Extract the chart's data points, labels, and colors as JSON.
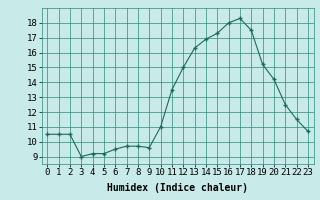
{
  "x": [
    0,
    1,
    2,
    3,
    4,
    5,
    6,
    7,
    8,
    9,
    10,
    11,
    12,
    13,
    14,
    15,
    16,
    17,
    18,
    19,
    20,
    21,
    22,
    23
  ],
  "y": [
    10.5,
    10.5,
    10.5,
    9.0,
    9.2,
    9.2,
    9.5,
    9.7,
    9.7,
    9.6,
    11.0,
    13.5,
    15.0,
    16.3,
    16.9,
    17.3,
    18.0,
    18.3,
    17.5,
    15.2,
    14.2,
    12.5,
    11.5,
    10.7
  ],
  "xlabel": "Humidex (Indice chaleur)",
  "xlim": [
    -0.5,
    23.5
  ],
  "ylim": [
    8.5,
    19.0
  ],
  "yticks": [
    9,
    10,
    11,
    12,
    13,
    14,
    15,
    16,
    17,
    18
  ],
  "xtick_labels": [
    "0",
    "1",
    "2",
    "3",
    "4",
    "5",
    "6",
    "7",
    "8",
    "9",
    "10",
    "11",
    "12",
    "13",
    "14",
    "15",
    "16",
    "17",
    "18",
    "19",
    "20",
    "21",
    "22",
    "23"
  ],
  "line_color": "#1a6b5a",
  "marker": "+",
  "bg_color": "#c8eae8",
  "grid_color": "#2a8a7a",
  "label_fontsize": 7,
  "tick_fontsize": 6.5
}
